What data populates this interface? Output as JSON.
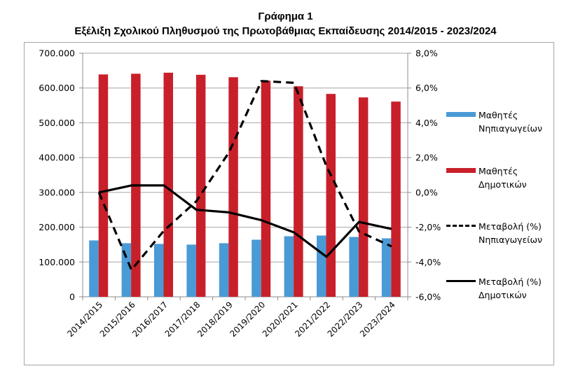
{
  "title": "Γράφημα 1",
  "subtitle": "Εξέλιξη Σχολικού Πληθυσμού της Πρωτοβάθμιας Εκπαίδευσης 2014/2015 - 2023/2024",
  "legend": {
    "items": [
      {
        "line1": "Μαθητές",
        "line2": "Νηπιαγωγείων",
        "type": "bar",
        "color": "#4a9ad6"
      },
      {
        "line1": "Μαθητές",
        "line2": "Δημοτικών",
        "type": "bar",
        "color": "#c8202a"
      },
      {
        "line1": "Μεταβολή (%)",
        "line2": "Νηπιαγωγείων",
        "type": "dashed-line",
        "color": "#000000"
      },
      {
        "line1": "Μεταβολή (%)",
        "line2": "Δημοτικών",
        "type": "solid-line",
        "color": "#000000"
      }
    ]
  },
  "chart_data": {
    "type": "bar",
    "title": "Γράφημα 1",
    "subtitle": "Εξέλιξη Σχολικού Πληθυσμού της Πρωτοβάθμιας Εκπαίδευσης 2014/2015 - 2023/2024",
    "xlabel": "",
    "ylabel": "",
    "y2label": "",
    "categories": [
      "2014/2015",
      "2015/2016",
      "2016/2017",
      "2017/2018",
      "2018/2019",
      "2019/2020",
      "2020/2021",
      "2021/2022",
      "2022/2023",
      "2023/2024"
    ],
    "series": [
      {
        "name": "Μαθητές Νηπιαγωγείων",
        "type": "bar",
        "axis": "left",
        "color": "#4a9ad6",
        "values": [
          162000,
          154000,
          152000,
          150000,
          154000,
          164000,
          174000,
          176000,
          172000,
          168000
        ]
      },
      {
        "name": "Μαθητές Δημοτικών",
        "type": "bar",
        "axis": "left",
        "color": "#c8202a",
        "values": [
          639000,
          641000,
          644000,
          638000,
          631000,
          621000,
          605000,
          583000,
          573000,
          561000
        ]
      },
      {
        "name": "Μεταβολή (%) Νηπιαγωγείων",
        "type": "line",
        "style": "dashed",
        "axis": "right",
        "color": "#000000",
        "values": [
          0.0,
          -4.45,
          -2.2,
          -0.5,
          2.3,
          6.4,
          6.3,
          1.5,
          -2.25,
          -3.1
        ]
      },
      {
        "name": "Μεταβολή (%) Δημοτικών",
        "type": "line",
        "style": "solid",
        "axis": "right",
        "color": "#000000",
        "values": [
          0.0,
          0.4,
          0.4,
          -1.0,
          -1.15,
          -1.6,
          -2.3,
          -3.7,
          -1.7,
          -2.1
        ]
      }
    ],
    "ylim": [
      0,
      700000
    ],
    "y_ticks": [
      "0",
      "100.000",
      "200.000",
      "300.000",
      "400.000",
      "500.000",
      "600.000",
      "700.000"
    ],
    "y2lim": [
      -6.0,
      8.0
    ],
    "y2_ticks": [
      "-6,0%",
      "-4,0%",
      "-2,0%",
      "0,0%",
      "2,0%",
      "4,0%",
      "6,0%",
      "8,0%"
    ],
    "grid": true,
    "legend_position": "right"
  }
}
